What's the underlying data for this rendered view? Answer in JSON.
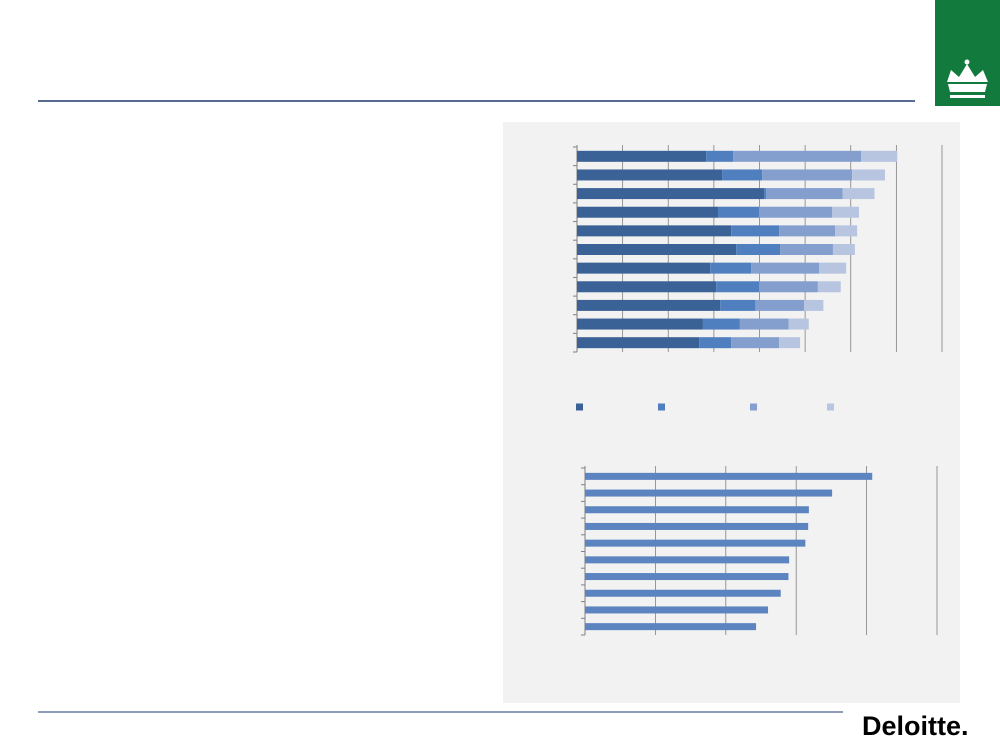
{
  "chart_data": [
    {
      "type": "bar",
      "orientation": "horizontal",
      "stacked": true,
      "grid": true,
      "legend": "bottom",
      "categories": [
        null,
        null,
        null,
        null,
        null,
        null,
        null,
        null,
        null,
        null,
        null
      ],
      "series": [
        {
          "color": "#3b6296",
          "values": [
            2.83,
            3.18,
            4.1,
            3.09,
            3.38,
            3.49,
            2.92,
            3.05,
            3.14,
            2.76,
            2.68
          ]
        },
        {
          "color": "#4f7fbf",
          "values": [
            0.59,
            0.88,
            0.05,
            0.9,
            1.05,
            0.96,
            0.9,
            0.94,
            0.77,
            0.81,
            0.7
          ]
        },
        {
          "color": "#849fce",
          "values": [
            2.81,
            1.97,
            1.67,
            1.6,
            1.23,
            1.16,
            1.49,
            1.29,
            1.07,
            1.07,
            1.05
          ]
        },
        {
          "color": "#b7c5e1",
          "values": [
            0.79,
            0.72,
            0.7,
            0.59,
            0.48,
            0.48,
            0.59,
            0.5,
            0.42,
            0.44,
            0.46
          ]
        }
      ],
      "xlim": [
        0,
        8
      ],
      "xticks": [
        0,
        1,
        2,
        3,
        4,
        5,
        6,
        7,
        8
      ]
    },
    {
      "type": "bar",
      "orientation": "horizontal",
      "stacked": false,
      "grid": true,
      "color": "#5b84c0",
      "categories": [
        null,
        null,
        null,
        null,
        null,
        null,
        null,
        null,
        null,
        null
      ],
      "values": [
        4.08,
        3.51,
        3.18,
        3.17,
        3.13,
        2.9,
        2.89,
        2.78,
        2.6,
        2.43
      ],
      "xlim": [
        0,
        5
      ],
      "xticks": [
        0,
        1,
        2,
        3,
        4,
        5
      ]
    }
  ],
  "footer": {
    "logo": "Deloitte."
  }
}
